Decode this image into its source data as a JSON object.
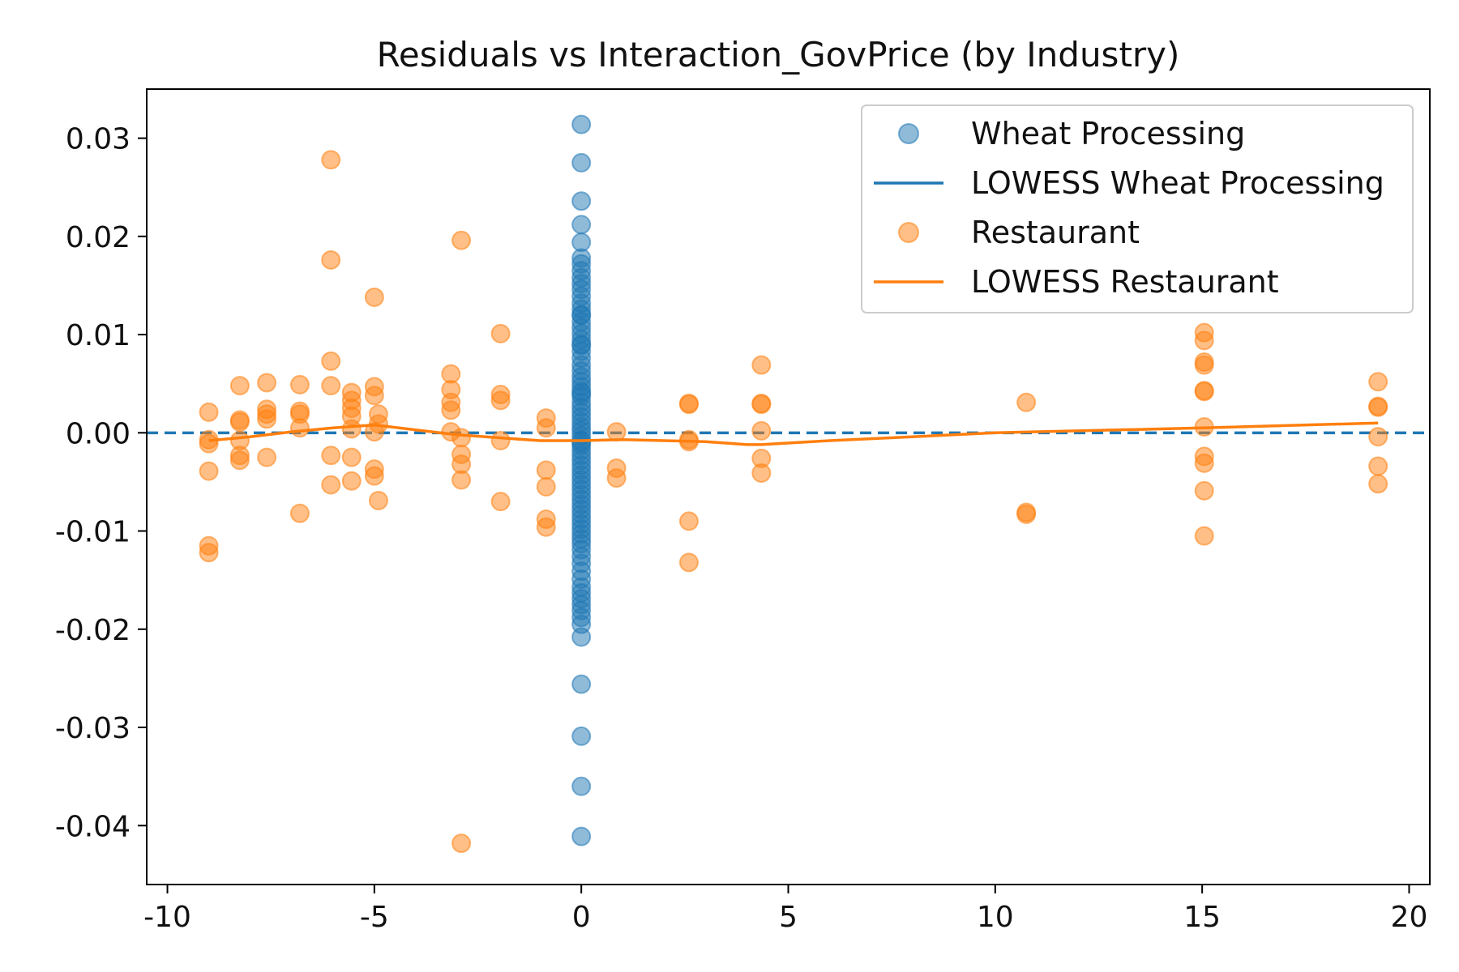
{
  "chart_data": {
    "type": "scatter",
    "title": "Residuals vs Interaction_GovPrice (by Industry)",
    "xlabel": "",
    "ylabel": "",
    "xlim": [
      -10.5,
      20.5
    ],
    "ylim": [
      -0.046,
      0.035
    ],
    "x_ticks": [
      -10,
      -5,
      0,
      5,
      10,
      15,
      20
    ],
    "x_tick_labels": [
      "-10",
      "-5",
      "0",
      "5",
      "10",
      "15",
      "20"
    ],
    "y_ticks": [
      -0.04,
      -0.03,
      -0.02,
      -0.01,
      0.0,
      0.01,
      0.02,
      0.03
    ],
    "y_tick_labels": [
      "-0.04",
      "-0.03",
      "-0.02",
      "-0.01",
      "0.00",
      "0.01",
      "0.02",
      "0.03"
    ],
    "grid": false,
    "legend_position": "top-right",
    "reference_line": {
      "y": 0,
      "style": "dashed",
      "color": "#1f77b4"
    },
    "series": [
      {
        "name": "Wheat Processing",
        "kind": "scatter",
        "color": "#1f77b4",
        "x": [
          0,
          0,
          0,
          0,
          0,
          0,
          0,
          0,
          0,
          0,
          0,
          0,
          0,
          0,
          0,
          0,
          0,
          0,
          0,
          0,
          0,
          0,
          0,
          0,
          0,
          0,
          0,
          0,
          0,
          0,
          0,
          0,
          0,
          0,
          0,
          0,
          0,
          0,
          0,
          0,
          0,
          0,
          0,
          0,
          0,
          0,
          0,
          0,
          0,
          0,
          0,
          0,
          0,
          0,
          0,
          0,
          0,
          0,
          0,
          0,
          0,
          0,
          0,
          0,
          0,
          0,
          0,
          0,
          0,
          0,
          0,
          0,
          0,
          0,
          0,
          0,
          0,
          0,
          0,
          0
        ],
        "y": [
          0.0314,
          0.0275,
          0.0236,
          0.0212,
          0.0194,
          0.0178,
          0.0172,
          0.0165,
          0.0158,
          0.0152,
          0.0146,
          0.0139,
          0.0132,
          0.0126,
          0.012,
          0.0113,
          0.0107,
          0.0101,
          0.0095,
          0.0089,
          0.0083,
          0.0076,
          0.0069,
          0.0063,
          0.0057,
          0.0052,
          0.0047,
          0.0042,
          0.0037,
          0.0031,
          0.0026,
          0.0021,
          0.0016,
          0.0011,
          0.0006,
          0.0002,
          -0.0003,
          -0.0008,
          -0.0013,
          -0.0018,
          -0.0023,
          -0.0028,
          -0.0033,
          -0.0038,
          -0.0043,
          -0.0048,
          -0.0053,
          -0.0058,
          -0.0063,
          -0.0068,
          -0.0073,
          -0.0078,
          -0.0083,
          -0.0088,
          -0.0093,
          -0.0098,
          -0.0103,
          -0.0108,
          -0.0113,
          -0.0119,
          -0.0126,
          -0.0133,
          -0.0141,
          -0.0149,
          -0.0157,
          -0.0163,
          -0.0169,
          -0.0175,
          -0.0181,
          -0.0188,
          -0.0195,
          -0.0208,
          -0.0256,
          -0.0309,
          -0.036,
          -0.0411,
          0.012,
          0.009,
          -0.001,
          0.004
        ]
      },
      {
        "name": "LOWESS Wheat Processing",
        "kind": "line",
        "color": "#1f77b4",
        "x": [],
        "y": []
      },
      {
        "name": "Restaurant",
        "kind": "scatter",
        "color": "#ff7f0e",
        "x": [
          -9,
          -9,
          -9,
          -9,
          -9,
          -9,
          -8.25,
          -8.25,
          -8.25,
          -8.25,
          -8.25,
          -8.25,
          -7.6,
          -7.6,
          -7.6,
          -7.6,
          -7.6,
          -6.8,
          -6.8,
          -6.8,
          -6.8,
          -6.8,
          -6.05,
          -6.05,
          -6.05,
          -6.05,
          -6.05,
          -6.05,
          -5.55,
          -5.55,
          -5.55,
          -5.55,
          -5.55,
          -5.55,
          -5.55,
          -5,
          -5,
          -5,
          -5,
          -5,
          -5,
          -4.9,
          -4.9,
          -4.9,
          -3.15,
          -3.15,
          -3.15,
          -3.15,
          -3.15,
          -2.9,
          -2.9,
          -2.9,
          -2.9,
          -2.9,
          -2.9,
          -1.95,
          -1.95,
          -1.95,
          -1.95,
          -1.95,
          -0.85,
          -0.85,
          -0.85,
          -0.85,
          -0.85,
          -0.85,
          0.85,
          0.85,
          0.85,
          2.6,
          2.6,
          2.6,
          2.6,
          2.6,
          2.6,
          4.35,
          4.35,
          4.35,
          4.35,
          4.35,
          4.35,
          10.75,
          10.75,
          10.75,
          15.05,
          15.05,
          15.05,
          15.05,
          15.05,
          15.05,
          15.05,
          15.05,
          15.05,
          15.05,
          15.05,
          19.25,
          19.25,
          19.25,
          19.25,
          19.25,
          19.25
        ],
        "y": [
          0.0021,
          -0.0007,
          -0.0011,
          -0.0039,
          -0.0115,
          -0.0122,
          0.0048,
          0.0013,
          0.0011,
          -0.0008,
          -0.0023,
          -0.0028,
          0.0051,
          0.0024,
          0.0019,
          0.0014,
          -0.0025,
          0.0049,
          0.0022,
          0.0019,
          0.0005,
          -0.0082,
          0.0278,
          0.0176,
          0.0073,
          0.0048,
          -0.0023,
          -0.0053,
          0.0041,
          0.0033,
          0.0025,
          0.0017,
          0.0004,
          -0.0025,
          -0.0049,
          0.0138,
          0.0047,
          0.0038,
          -0.0037,
          -0.0044,
          0.0001,
          0.0019,
          0.0009,
          -0.0069,
          0.006,
          0.0044,
          0.0031,
          0.0023,
          0.0001,
          0.0196,
          -0.0005,
          -0.0022,
          -0.0032,
          -0.0048,
          -0.0418,
          0.0101,
          0.0039,
          0.0033,
          -0.0008,
          -0.007,
          0.0015,
          0.0005,
          -0.0038,
          -0.0055,
          -0.0088,
          -0.0096,
          0.0001,
          -0.0036,
          -0.0046,
          0.0029,
          0.003,
          -0.0007,
          -0.0009,
          -0.009,
          -0.0132,
          0.0069,
          0.003,
          0.0029,
          0.0002,
          -0.0026,
          -0.0041,
          0.0031,
          -0.0081,
          -0.0083,
          0.0102,
          0.0094,
          0.0072,
          0.0069,
          0.0043,
          0.0042,
          0.0006,
          -0.0024,
          -0.0031,
          -0.0059,
          -0.0105,
          0.0052,
          0.0027,
          0.0026,
          -0.0004,
          -0.0034,
          -0.0052
        ]
      },
      {
        "name": "LOWESS Restaurant",
        "kind": "line",
        "color": "#ff7f0e",
        "x": [
          -9,
          -8,
          -7,
          -6,
          -5,
          -4,
          -3,
          -2,
          -1,
          0,
          1,
          2,
          3,
          4,
          4.35,
          6,
          8,
          10,
          12,
          15,
          19.25
        ],
        "y": [
          -0.0008,
          -0.0004,
          0.0001,
          0.0005,
          0.0008,
          0.0003,
          -0.0002,
          -0.0005,
          -0.0008,
          -0.0008,
          -0.0007,
          -0.0008,
          -0.0009,
          -0.0012,
          -0.0012,
          -0.0008,
          -0.0004,
          0.0,
          0.0002,
          0.0005,
          0.001
        ]
      }
    ]
  }
}
